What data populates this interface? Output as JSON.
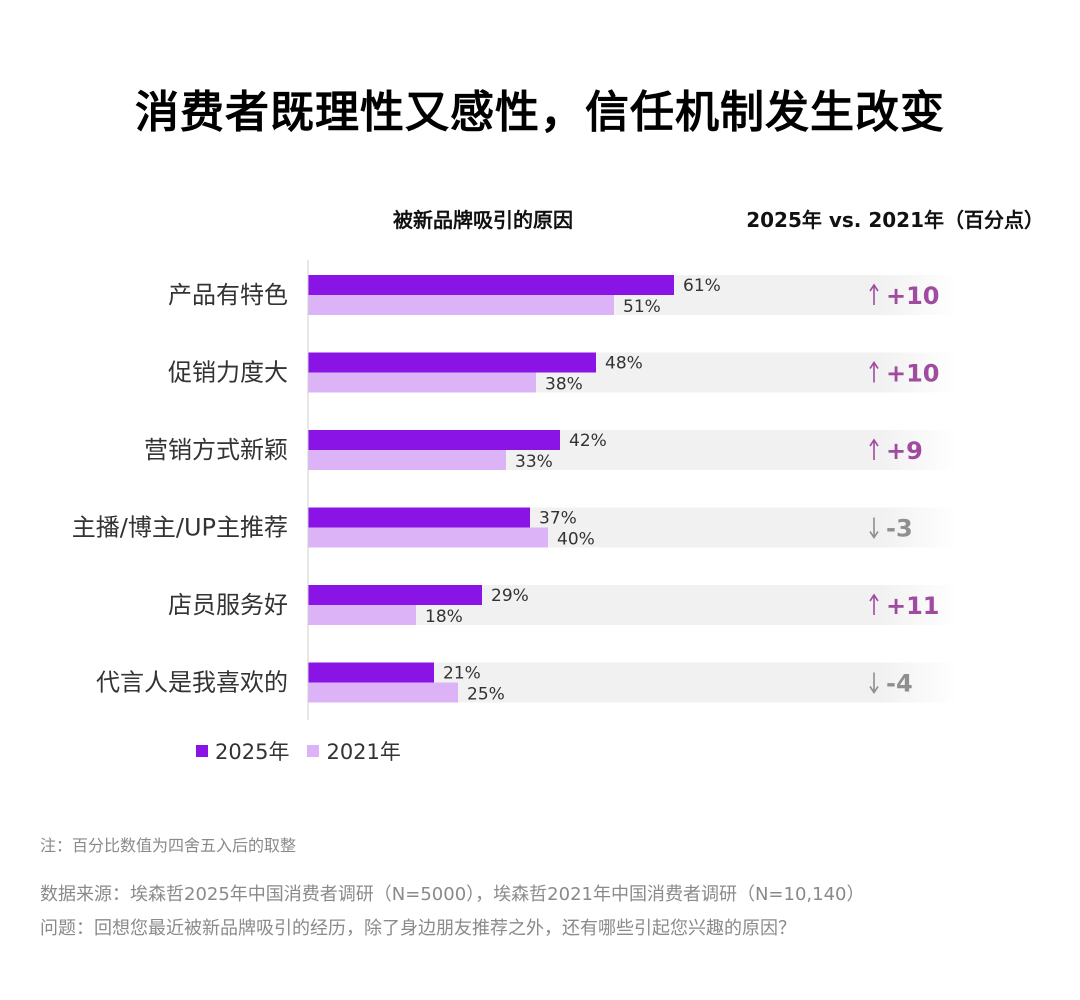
{
  "title": "消费者既理性又感性，信任机制发生改变",
  "header": {
    "left": "被新品牌吸引的原因",
    "right": "2025年 vs. 2021年（百分点）"
  },
  "legend": {
    "series_2025": "2025年",
    "series_2021": "2021年"
  },
  "colors": {
    "series_2025": "#8a14e6",
    "series_2021": "#dcb3f7",
    "change_up": "#a04aa0",
    "change_down": "#8f8f8f",
    "band": "#f1f1f1",
    "axis": "#cfcfcf"
  },
  "icons": {
    "up": "arrow-up-icon",
    "down": "arrow-down-icon"
  },
  "chart_data": {
    "type": "bar",
    "orientation": "horizontal",
    "categories": [
      "产品有特色",
      "促销力度大",
      "营销方式新颖",
      "主播/博主/UP主推荐",
      "店员服务好",
      "代言人是我喜欢的"
    ],
    "series": [
      {
        "name": "2025年",
        "values": [
          61,
          48,
          42,
          37,
          29,
          21
        ],
        "labels": [
          "61%",
          "48%",
          "42%",
          "37%",
          "29%",
          "21%"
        ]
      },
      {
        "name": "2021年",
        "values": [
          51,
          38,
          33,
          40,
          18,
          25
        ],
        "labels": [
          "51%",
          "38%",
          "33%",
          "40%",
          "18%",
          "25%"
        ]
      }
    ],
    "changes": [
      10,
      10,
      9,
      -3,
      11,
      -4
    ],
    "change_labels": [
      "+10",
      "+10",
      "+9",
      "-3",
      "+11",
      "-4"
    ],
    "unit": "%",
    "legend_position": "bottom-left",
    "grid": false
  },
  "footnotes": {
    "note": "注：百分比数值为四舍五入后的取整",
    "source": "数据来源：埃森哲2025年中国消费者调研（N=5000），埃森哲2021年中国消费者调研（N=10,140）",
    "question": "问题：回想您最近被新品牌吸引的经历，除了身边朋友推荐之外，还有哪些引起您兴趣的原因？"
  }
}
